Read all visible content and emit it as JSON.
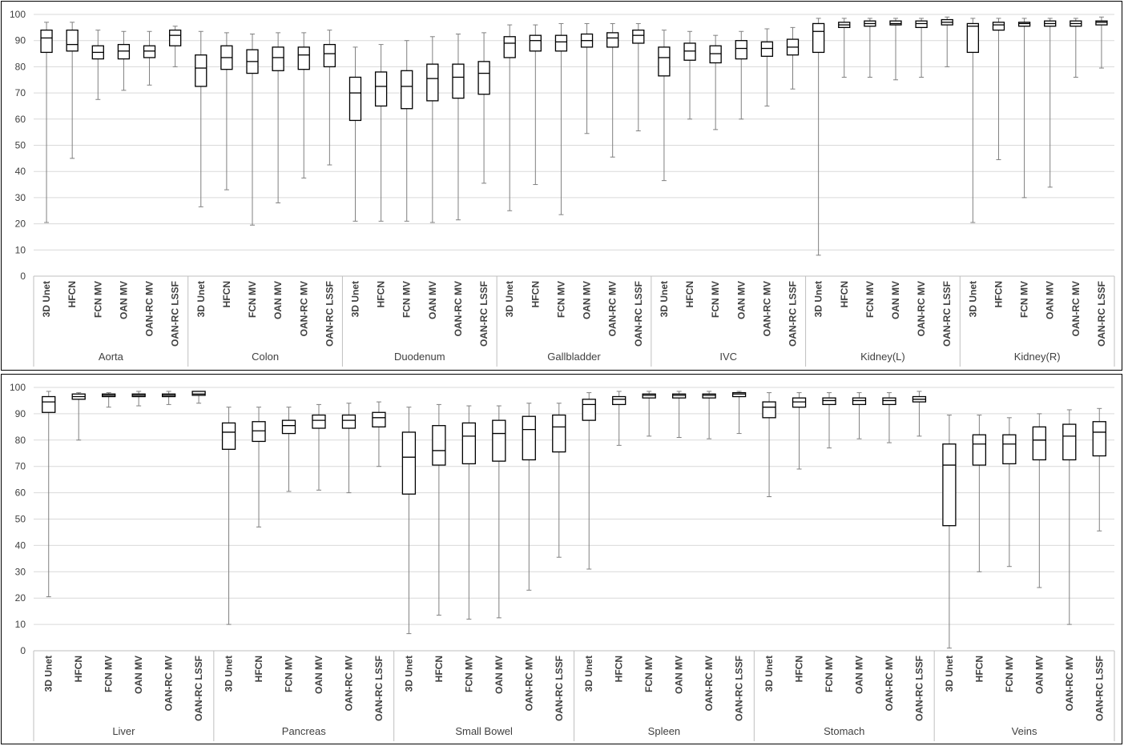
{
  "chart_data": [
    {
      "type": "box",
      "ylim": [
        0,
        100
      ],
      "yticks": [
        0,
        10,
        20,
        30,
        40,
        50,
        60,
        70,
        80,
        90,
        100
      ],
      "grid": true,
      "method_labels": [
        "3D Unet",
        "HFCN",
        "FCN MV",
        "OAN MV",
        "OAN-RC MV",
        "OAN-RC LSSF"
      ],
      "groups": [
        {
          "name": "Aorta",
          "boxes": [
            {
              "min": 20.5,
              "q1": 85.5,
              "median": 91,
              "q3": 94,
              "max": 97
            },
            {
              "min": 45,
              "q1": 86,
              "median": 88.5,
              "q3": 94,
              "max": 97
            },
            {
              "min": 67.5,
              "q1": 83,
              "median": 85.5,
              "q3": 88,
              "max": 94
            },
            {
              "min": 71,
              "q1": 83,
              "median": 86,
              "q3": 88.5,
              "max": 93.5
            },
            {
              "min": 73,
              "q1": 83.5,
              "median": 86,
              "q3": 88,
              "max": 93.5
            },
            {
              "min": 80,
              "q1": 88,
              "median": 92,
              "q3": 94,
              "max": 95.5
            }
          ]
        },
        {
          "name": "Colon",
          "boxes": [
            {
              "min": 26.5,
              "q1": 72.5,
              "median": 79.5,
              "q3": 84.5,
              "max": 93.5
            },
            {
              "min": 33,
              "q1": 79,
              "median": 83.5,
              "q3": 88,
              "max": 93
            },
            {
              "min": 19.5,
              "q1": 77.5,
              "median": 82,
              "q3": 86.5,
              "max": 92.5
            },
            {
              "min": 28,
              "q1": 78.5,
              "median": 83.5,
              "q3": 87.5,
              "max": 93
            },
            {
              "min": 37.5,
              "q1": 79,
              "median": 84.5,
              "q3": 87.5,
              "max": 93
            },
            {
              "min": 42.5,
              "q1": 80,
              "median": 85,
              "q3": 88.5,
              "max": 94
            }
          ]
        },
        {
          "name": "Duodenum",
          "boxes": [
            {
              "min": 21,
              "q1": 59.5,
              "median": 70,
              "q3": 76,
              "max": 87.5
            },
            {
              "min": 21,
              "q1": 65,
              "median": 72.5,
              "q3": 78,
              "max": 88.5
            },
            {
              "min": 21,
              "q1": 64,
              "median": 72.5,
              "q3": 78.5,
              "max": 90
            },
            {
              "min": 20.5,
              "q1": 67,
              "median": 75.5,
              "q3": 81,
              "max": 91.5
            },
            {
              "min": 21.5,
              "q1": 68,
              "median": 76,
              "q3": 81,
              "max": 92.5
            },
            {
              "min": 35.5,
              "q1": 69.5,
              "median": 77.5,
              "q3": 82,
              "max": 93
            }
          ]
        },
        {
          "name": "Gallbladder",
          "boxes": [
            {
              "min": 25,
              "q1": 83.5,
              "median": 89,
              "q3": 91.5,
              "max": 96
            },
            {
              "min": 35,
              "q1": 86,
              "median": 90,
              "q3": 92,
              "max": 96
            },
            {
              "min": 23.5,
              "q1": 86,
              "median": 89.5,
              "q3": 92,
              "max": 96.5
            },
            {
              "min": 54.5,
              "q1": 87.5,
              "median": 90,
              "q3": 92.5,
              "max": 96.5
            },
            {
              "min": 45.5,
              "q1": 87.5,
              "median": 91,
              "q3": 93,
              "max": 96.5
            },
            {
              "min": 55.5,
              "q1": 89,
              "median": 92,
              "q3": 94,
              "max": 96.5
            }
          ]
        },
        {
          "name": "IVC",
          "boxes": [
            {
              "min": 36.5,
              "q1": 76.5,
              "median": 83.5,
              "q3": 87.5,
              "max": 94
            },
            {
              "min": 60,
              "q1": 82.5,
              "median": 86,
              "q3": 89,
              "max": 93.5
            },
            {
              "min": 56,
              "q1": 81.5,
              "median": 85,
              "q3": 88,
              "max": 92
            },
            {
              "min": 60,
              "q1": 83,
              "median": 87,
              "q3": 90,
              "max": 93.5
            },
            {
              "min": 65,
              "q1": 84,
              "median": 87,
              "q3": 89.5,
              "max": 94.5
            },
            {
              "min": 71.5,
              "q1": 84.5,
              "median": 87.5,
              "q3": 90.5,
              "max": 95
            }
          ]
        },
        {
          "name": "Kidney(L)",
          "boxes": [
            {
              "min": 8,
              "q1": 85.5,
              "median": 93.5,
              "q3": 96.5,
              "max": 98.5
            },
            {
              "min": 76,
              "q1": 95,
              "median": 96,
              "q3": 97,
              "max": 98.5
            },
            {
              "min": 76,
              "q1": 95.5,
              "median": 96.5,
              "q3": 97.5,
              "max": 98.5
            },
            {
              "min": 75,
              "q1": 96,
              "median": 96.5,
              "q3": 97.5,
              "max": 98.5
            },
            {
              "min": 76,
              "q1": 95,
              "median": 96.5,
              "q3": 97.5,
              "max": 98.5
            },
            {
              "min": 80,
              "q1": 96,
              "median": 97,
              "q3": 98,
              "max": 99
            }
          ]
        },
        {
          "name": "Kidney(R)",
          "boxes": [
            {
              "min": 20.5,
              "q1": 85.5,
              "median": 95.5,
              "q3": 96.5,
              "max": 98.5
            },
            {
              "min": 44.5,
              "q1": 94,
              "median": 96,
              "q3": 97,
              "max": 98.5
            },
            {
              "min": 30,
              "q1": 95.5,
              "median": 96.5,
              "q3": 97,
              "max": 98.5
            },
            {
              "min": 34,
              "q1": 95.5,
              "median": 96.5,
              "q3": 97.5,
              "max": 98.5
            },
            {
              "min": 76,
              "q1": 95.5,
              "median": 96.5,
              "q3": 97.5,
              "max": 98.5
            },
            {
              "min": 79.5,
              "q1": 96,
              "median": 97,
              "q3": 97.5,
              "max": 99
            }
          ]
        }
      ]
    },
    {
      "type": "box",
      "ylim": [
        0,
        100
      ],
      "yticks": [
        0,
        10,
        20,
        30,
        40,
        50,
        60,
        70,
        80,
        90,
        100
      ],
      "grid": true,
      "method_labels": [
        "3D Unet",
        "HFCN",
        "FCN MV",
        "OAN MV",
        "OAN-RC MV",
        "OAN-RC LSSF"
      ],
      "groups": [
        {
          "name": "Liver",
          "boxes": [
            {
              "min": 20.5,
              "q1": 90.5,
              "median": 94.5,
              "q3": 96.5,
              "max": 98.5
            },
            {
              "min": 80,
              "q1": 95.5,
              "median": 96.5,
              "q3": 97.5,
              "max": 98
            },
            {
              "min": 92.5,
              "q1": 96.5,
              "median": 97,
              "q3": 97.5,
              "max": 98
            },
            {
              "min": 93,
              "q1": 96.5,
              "median": 97,
              "q3": 97.5,
              "max": 98.5
            },
            {
              "min": 93.5,
              "q1": 96.5,
              "median": 97,
              "q3": 97.5,
              "max": 98.5
            },
            {
              "min": 94,
              "q1": 97,
              "median": 97.5,
              "q3": 98.5,
              "max": 98.5
            }
          ]
        },
        {
          "name": "Pancreas",
          "boxes": [
            {
              "min": 10,
              "q1": 76.5,
              "median": 83,
              "q3": 86.5,
              "max": 92.5
            },
            {
              "min": 47,
              "q1": 79.5,
              "median": 83.5,
              "q3": 87,
              "max": 92.5
            },
            {
              "min": 60.5,
              "q1": 82.5,
              "median": 85.5,
              "q3": 87.5,
              "max": 92.5
            },
            {
              "min": 61,
              "q1": 84.5,
              "median": 87.5,
              "q3": 89.5,
              "max": 93.5
            },
            {
              "min": 60,
              "q1": 84.5,
              "median": 87.5,
              "q3": 89.5,
              "max": 94
            },
            {
              "min": 70,
              "q1": 85,
              "median": 88.5,
              "q3": 90.5,
              "max": 94.5
            }
          ]
        },
        {
          "name": "Small Bowel",
          "boxes": [
            {
              "min": 6.5,
              "q1": 59.5,
              "median": 73.5,
              "q3": 83,
              "max": 92.5
            },
            {
              "min": 13.5,
              "q1": 70.5,
              "median": 76,
              "q3": 85.5,
              "max": 93.5
            },
            {
              "min": 12,
              "q1": 71,
              "median": 81.5,
              "q3": 86.5,
              "max": 93
            },
            {
              "min": 12.5,
              "q1": 72,
              "median": 82.5,
              "q3": 87.5,
              "max": 93
            },
            {
              "min": 23,
              "q1": 72.5,
              "median": 84,
              "q3": 89,
              "max": 94
            },
            {
              "min": 35.5,
              "q1": 75.5,
              "median": 85,
              "q3": 89.5,
              "max": 94
            }
          ]
        },
        {
          "name": "Spleen",
          "boxes": [
            {
              "min": 31,
              "q1": 87.5,
              "median": 93.5,
              "q3": 95.5,
              "max": 98
            },
            {
              "min": 78,
              "q1": 93.5,
              "median": 95.5,
              "q3": 96.5,
              "max": 98.5
            },
            {
              "min": 81.5,
              "q1": 96,
              "median": 97,
              "q3": 97.5,
              "max": 98.5
            },
            {
              "min": 81,
              "q1": 96,
              "median": 97,
              "q3": 97.5,
              "max": 98.5
            },
            {
              "min": 80.5,
              "q1": 96,
              "median": 97,
              "q3": 97.5,
              "max": 98.5
            },
            {
              "min": 82.5,
              "q1": 96.5,
              "median": 97.5,
              "q3": 98,
              "max": 98.5
            }
          ]
        },
        {
          "name": "Stomach",
          "boxes": [
            {
              "min": 58.5,
              "q1": 88.5,
              "median": 92.5,
              "q3": 94.5,
              "max": 98
            },
            {
              "min": 69,
              "q1": 92.5,
              "median": 94.5,
              "q3": 96,
              "max": 98
            },
            {
              "min": 77,
              "q1": 93.5,
              "median": 95,
              "q3": 96,
              "max": 98
            },
            {
              "min": 80.5,
              "q1": 93.5,
              "median": 95,
              "q3": 96,
              "max": 98
            },
            {
              "min": 79,
              "q1": 93.5,
              "median": 95,
              "q3": 96,
              "max": 98
            },
            {
              "min": 81.5,
              "q1": 94.5,
              "median": 95.5,
              "q3": 96.5,
              "max": 98.5
            }
          ]
        },
        {
          "name": "Veins",
          "boxes": [
            {
              "min": 1,
              "q1": 47.5,
              "median": 70.5,
              "q3": 78.5,
              "max": 89.5
            },
            {
              "min": 30,
              "q1": 70.5,
              "median": 78.5,
              "q3": 82,
              "max": 89.5
            },
            {
              "min": 32,
              "q1": 71,
              "median": 78.5,
              "q3": 82,
              "max": 88.5
            },
            {
              "min": 24,
              "q1": 72.5,
              "median": 80,
              "q3": 85,
              "max": 90
            },
            {
              "min": 10,
              "q1": 72.5,
              "median": 81.5,
              "q3": 86,
              "max": 91.5
            },
            {
              "min": 45.5,
              "q1": 74,
              "median": 83,
              "q3": 87,
              "max": 92
            }
          ]
        }
      ]
    }
  ],
  "colors": {
    "box_stroke": "#000000",
    "whisker": "#808080",
    "grid": "#d9d9d9",
    "axis": "#bfbfbf",
    "text": "#404040"
  }
}
